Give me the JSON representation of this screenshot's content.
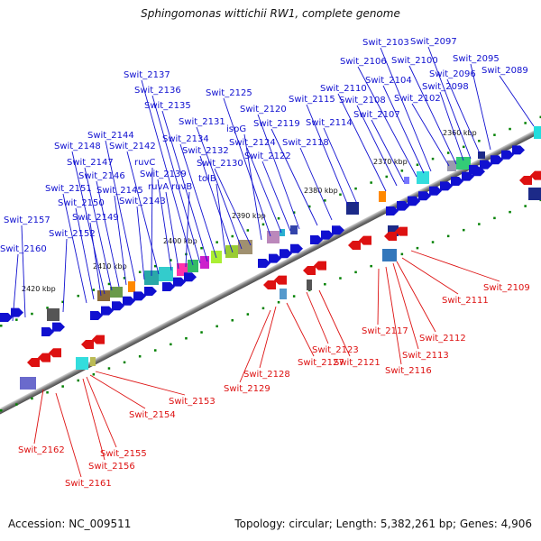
{
  "title": "Sphingomonas wittichii RW1, complete genome",
  "footer": {
    "accession": "Accession: NC_009511",
    "topology": "Topology: circular; Length: 5,382,261 bp; Genes: 4,906"
  },
  "colors": {
    "forward": "#1010d0",
    "reverse": "#dd1111",
    "backbone": "#808080",
    "tick": "#008000"
  },
  "kbp_labels": [
    "2360 kbp",
    "2370 kbp",
    "2380 kbp",
    "2390 kbp",
    "2400 kbp",
    "2410 kbp",
    "2420 kbp"
  ],
  "forward_genes": [
    "Swit_2089",
    "Swit_2095",
    "Swit_2096",
    "Swit_2097",
    "Swit_2098",
    "Swit_2100",
    "Swit_2102",
    "Swit_2103",
    "Swit_2104",
    "Swit_2106",
    "Swit_2107",
    "Swit_2108",
    "Swit_2110",
    "Swit_2114",
    "Swit_2115",
    "Swit_2118",
    "Swit_2119",
    "Swit_2120",
    "Swit_2122",
    "Swit_2124",
    "Swit_2125",
    "ispG",
    "Swit_2130",
    "Swit_2131",
    "Swit_2132",
    "tolB",
    "Swit_2134",
    "Swit_2135",
    "Swit_2136",
    "Swit_2137",
    "ruvB",
    "ruvA",
    "Swit_2139",
    "Swit_2142",
    "ruvC",
    "Swit_2143",
    "Swit_2144",
    "Swit_2145",
    "Swit_2146",
    "Swit_2147",
    "Swit_2148",
    "Swit_2149",
    "Swit_2150",
    "Swit_2151",
    "Swit_2152",
    "Swit_2157",
    "Swit_2160"
  ],
  "reverse_genes": [
    "Swit_2109",
    "Swit_2111",
    "Swit_2112",
    "Swit_2113",
    "Swit_2116",
    "Swit_2117",
    "Swit_2121",
    "Swit_2123",
    "Swit_2127",
    "Swit_2128",
    "Swit_2129",
    "Swit_2153",
    "Swit_2154",
    "Swit_2155",
    "Swit_2156",
    "Swit_2161",
    "Swit_2162"
  ]
}
